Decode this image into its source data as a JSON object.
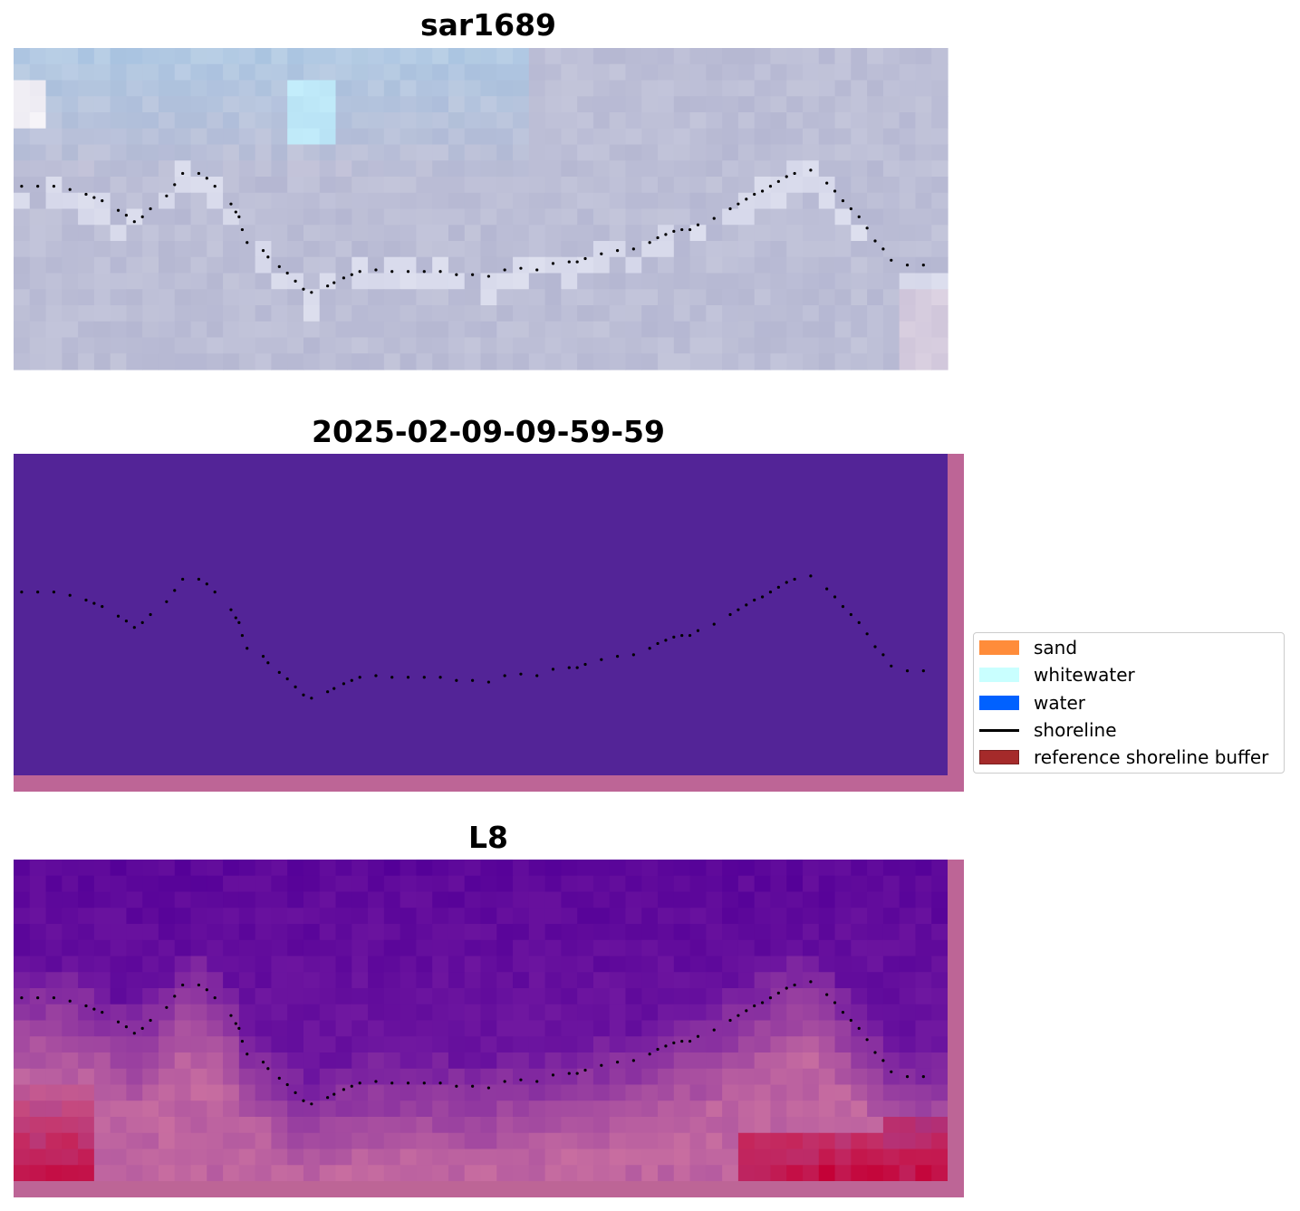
{
  "panels": [
    {
      "title": "sar1689",
      "render": "rgb"
    },
    {
      "title": "2025-02-09-09-59-59",
      "render": "flat"
    },
    {
      "title": "L8",
      "render": "index"
    }
  ],
  "colors": {
    "flat_fill": "#532497",
    "index_border": "#bd6596",
    "shoreline_points": "#000000"
  },
  "legend": {
    "items": [
      {
        "label": "sand",
        "color": "#ff8c3a",
        "kind": "patch"
      },
      {
        "label": "whitewater",
        "color": "#c9ffff",
        "kind": "patch"
      },
      {
        "label": "water",
        "color": "#0061ff",
        "kind": "patch"
      },
      {
        "label": "shoreline",
        "color": "#000000",
        "kind": "line"
      },
      {
        "label": "reference shoreline buffer",
        "color": "#a52a2a",
        "kind": "patch"
      }
    ]
  },
  "chart_data": {
    "type": "scatter",
    "image_grid": {
      "columns": 58,
      "rows": 20
    },
    "shoreline": {
      "x": [
        0.5,
        1.5,
        2.5,
        3.5,
        4.5,
        5.0,
        5.5,
        6.5,
        7.0,
        7.5,
        8.0,
        8.5,
        9.5,
        10.0,
        10.5,
        11.5,
        12.0,
        12.5,
        13.5,
        13.8,
        14.0,
        14.2,
        14.5,
        15.5,
        15.8,
        16.5,
        17.0,
        17.5,
        18.0,
        18.5,
        19.5,
        19.9,
        20.5,
        21.0,
        21.5,
        22.5,
        23.5,
        24.5,
        25.5,
        26.5,
        27.5,
        28.5,
        29.5,
        30.5,
        31.5,
        32.5,
        33.5,
        34.5,
        35.0,
        35.5,
        36.5,
        37.5,
        38.5,
        39.5,
        40.0,
        40.5,
        41.0,
        41.5,
        42.0,
        42.5,
        43.5,
        44.5,
        45.0,
        45.5,
        46.0,
        46.5,
        47.0,
        47.5,
        48.0,
        48.5,
        49.5,
        50.5,
        51.0,
        51.5,
        52.0,
        52.5,
        53.0,
        53.5,
        54.0,
        54.5,
        55.5,
        56.5
      ],
      "y": [
        8.6,
        8.6,
        8.6,
        8.8,
        9.1,
        9.3,
        9.5,
        10.1,
        10.4,
        10.8,
        10.5,
        10.0,
        9.2,
        8.5,
        7.8,
        7.8,
        8.1,
        8.6,
        9.7,
        10.2,
        10.5,
        11.3,
        12.1,
        12.6,
        13.0,
        13.6,
        14.0,
        14.5,
        15.0,
        15.2,
        14.8,
        14.6,
        14.3,
        14.1,
        13.9,
        13.8,
        13.9,
        13.9,
        13.9,
        13.9,
        14.1,
        14.1,
        14.2,
        13.8,
        13.7,
        13.8,
        13.4,
        13.3,
        13.3,
        13.1,
        12.8,
        12.6,
        12.5,
        12.1,
        11.8,
        11.6,
        11.4,
        11.3,
        11.3,
        11.0,
        10.6,
        10.0,
        9.7,
        9.4,
        9.1,
        8.9,
        8.6,
        8.3,
        8.0,
        7.8,
        7.6,
        8.4,
        8.9,
        9.5,
        10.0,
        10.5,
        11.2,
        12.0,
        12.5,
        13.2,
        13.5,
        13.5
      ]
    },
    "xlim": [
      0,
      58
    ],
    "ylim": [
      20,
      0
    ],
    "axes": "off",
    "legend_position": "center right"
  }
}
